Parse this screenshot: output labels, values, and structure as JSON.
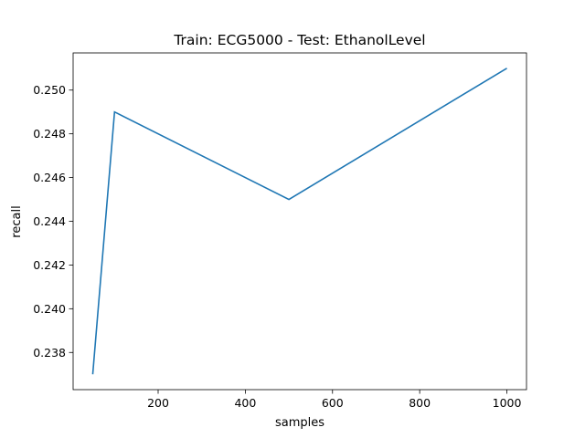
{
  "chart_data": {
    "type": "line",
    "title": "Train: ECG5000 - Test: EthanolLevel",
    "xlabel": "samples",
    "ylabel": "recall",
    "x": [
      50,
      100,
      500,
      1000
    ],
    "series": [
      {
        "values": [
          0.237,
          0.249,
          0.245,
          0.251
        ],
        "color": "#1f77b4"
      }
    ],
    "xlim": [
      5,
      1045
    ],
    "ylim": [
      0.2363,
      0.2517
    ],
    "xticks": [
      200,
      400,
      600,
      800,
      1000
    ],
    "yticks": [
      0.238,
      0.24,
      0.242,
      0.244,
      0.246,
      0.248,
      0.25
    ],
    "xtick_labels": [
      "200",
      "400",
      "600",
      "800",
      "1000"
    ],
    "ytick_labels": [
      "0.238",
      "0.240",
      "0.242",
      "0.244",
      "0.246",
      "0.248",
      "0.250"
    ],
    "grid": false,
    "legend": "none"
  }
}
